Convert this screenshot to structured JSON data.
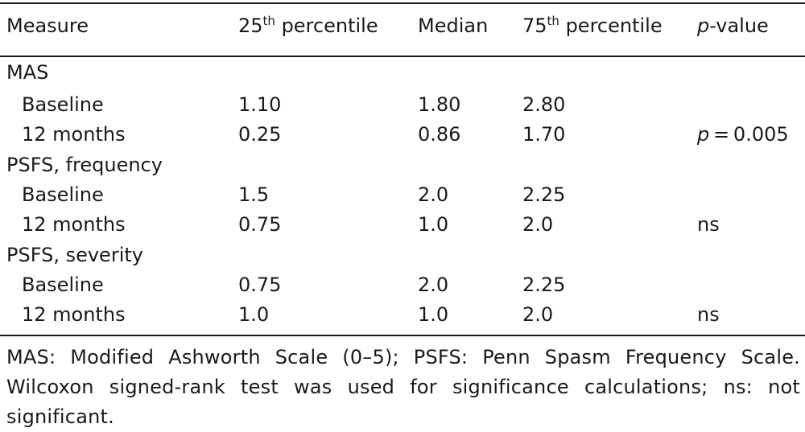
{
  "header": {
    "measure": "Measure",
    "p25_base": "25",
    "p25_sup": "th",
    "p25_rest": " percentile",
    "median": "Median",
    "p75_base": "75",
    "p75_sup": "th",
    "p75_rest": " percentile",
    "pvalue_italic": "p",
    "pvalue_rest": "-value"
  },
  "groups": [
    {
      "label": "MAS",
      "rows": [
        {
          "label": "Baseline",
          "p25": "1.10",
          "median": "1.80",
          "p75": "2.80",
          "p_italic": "",
          "p_rest": ""
        },
        {
          "label": "12 months",
          "p25": "0.25",
          "median": "0.86",
          "p75": "1.70",
          "p_italic": "p",
          "p_rest": " = 0.005"
        }
      ]
    },
    {
      "label": "PSFS, frequency",
      "rows": [
        {
          "label": "Baseline",
          "p25": "1.5",
          "median": "2.0",
          "p75": "2.25",
          "p_italic": "",
          "p_rest": ""
        },
        {
          "label": "12 months",
          "p25": "0.75",
          "median": "1.0",
          "p75": "2.0",
          "p_italic": "",
          "p_rest": "ns"
        }
      ]
    },
    {
      "label": "PSFS, severity",
      "rows": [
        {
          "label": "Baseline",
          "p25": "0.75",
          "median": "2.0",
          "p75": "2.25",
          "p_italic": "",
          "p_rest": ""
        },
        {
          "label": "12 months",
          "p25": "1.0",
          "median": "1.0",
          "p75": "2.0",
          "p_italic": "",
          "p_rest": "ns"
        }
      ]
    }
  ],
  "footnote": "MAS: Modified Ashworth Scale (0–5); PSFS: Penn Spasm Frequency Scale. Wilcoxon signed-rank test was used for significance calculations; ns: not significant."
}
